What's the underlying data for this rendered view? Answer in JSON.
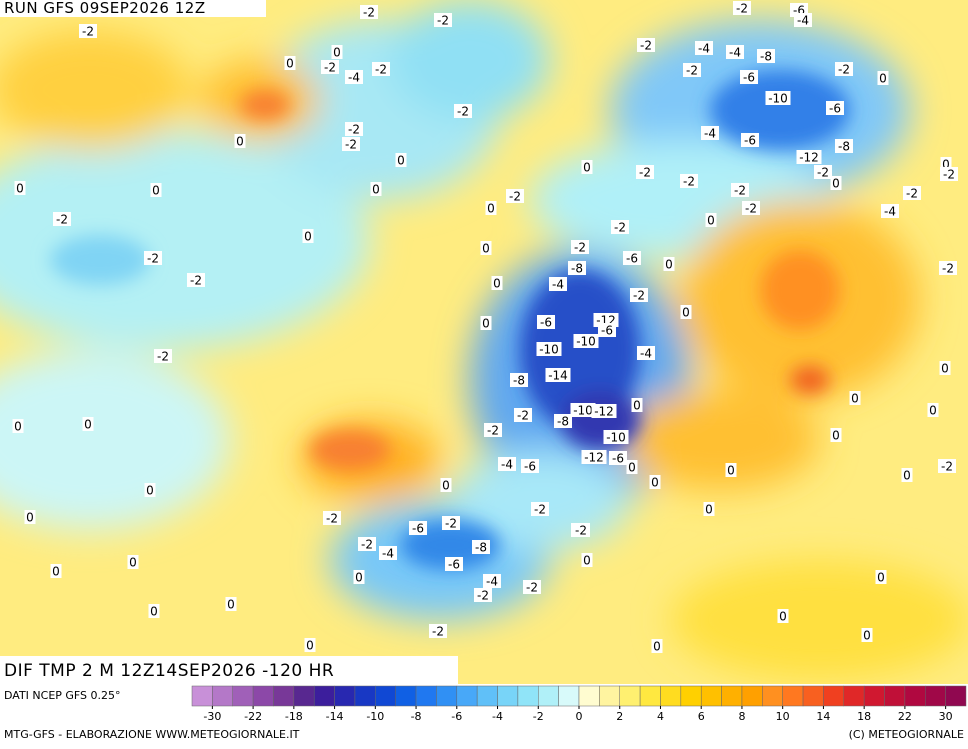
{
  "header": {
    "run": "RUN GFS 09SEP2026 12Z",
    "field": "DIF TMP 2 M 12Z14SEP2026 -120 HR"
  },
  "footer": {
    "source": "DATI NCEP GFS 0.25°",
    "processing": "MTG-GFS - ELABORAZIONE WWW.METEOGIORNALE.IT",
    "copyright": "(C) METEOGIORNALE"
  },
  "colorbar": {
    "colors": [
      "#c890d8",
      "#b478c8",
      "#a060b8",
      "#8c48a8",
      "#783898",
      "#582890",
      "#3c1e9c",
      "#2828b0",
      "#1838c4",
      "#1048d4",
      "#1060e4",
      "#2078f0",
      "#3090f4",
      "#48a8f8",
      "#60c0f8",
      "#78d4f8",
      "#90e4f8",
      "#b0f0f8",
      "#d8fafa",
      "#fffcd0",
      "#fff4a0",
      "#fff070",
      "#ffe840",
      "#ffdc20",
      "#ffd000",
      "#ffc000",
      "#ffb000",
      "#ffa000",
      "#ff9020",
      "#ff7820",
      "#f86020",
      "#f04020",
      "#e02828",
      "#d01830",
      "#c01038",
      "#b00840",
      "#a00848",
      "#900850"
    ],
    "ticks": [
      -30,
      -22,
      -18,
      -14,
      -10,
      -8,
      -6,
      -4,
      -2,
      0,
      2,
      4,
      6,
      8,
      10,
      14,
      18,
      22,
      30
    ]
  },
  "map": {
    "contour_labels": [
      -2,
      0,
      -2,
      -4,
      -2,
      -2,
      -2,
      0,
      -2,
      -2,
      -2,
      0,
      0,
      0,
      0,
      0,
      -2,
      -2,
      -2,
      0,
      -2,
      0,
      0,
      0,
      0,
      0,
      0,
      0,
      0,
      0,
      -2,
      -2,
      0,
      -2,
      -4,
      -6,
      -2,
      -6,
      -8,
      -2,
      -4,
      -2,
      -2,
      0,
      -4,
      -6,
      -2,
      -2,
      -8,
      0,
      0,
      0,
      -2,
      0,
      -2,
      -8,
      -4,
      -6,
      -10,
      -14,
      -10,
      -12,
      -6,
      -2,
      -6,
      -2,
      -4,
      0,
      0,
      -2,
      -2,
      0,
      -2,
      -2,
      0,
      -2,
      -2,
      -4,
      -4,
      -8,
      -6,
      -10,
      -4,
      -6,
      -12,
      -6,
      -8,
      -2,
      0,
      -2,
      0,
      -2,
      -4,
      0,
      -2,
      -2,
      0,
      0,
      0,
      0,
      0,
      -2,
      0,
      0,
      0,
      0,
      0,
      0,
      0,
      0,
      -2,
      0,
      -2,
      -12,
      -6,
      -10,
      -10,
      -12,
      -8,
      0,
      -2,
      -6,
      -4
    ]
  }
}
